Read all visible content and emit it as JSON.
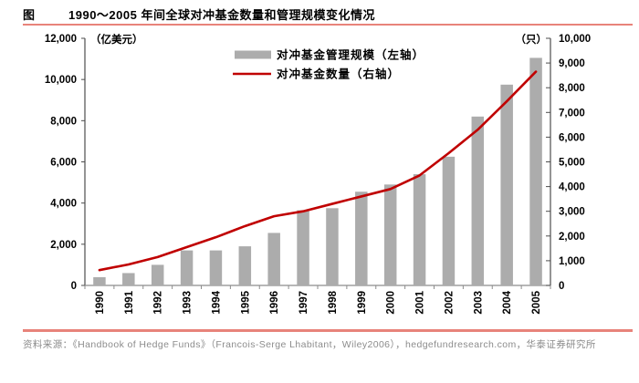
{
  "header": {
    "figure_label": "图",
    "title": "1990～2005 年间全球对冲基金数量和管理规模变化情况"
  },
  "chart_data": {
    "type": "bar",
    "subtype": "dual-axis-bar-line-combo",
    "title": "1990～2005 年间全球对冲基金数量和管理规模变化情况",
    "categories": [
      "1990",
      "1991",
      "1992",
      "1993",
      "1994",
      "1995",
      "1996",
      "1997",
      "1998",
      "1999",
      "2000",
      "2001",
      "2002",
      "2003",
      "2004",
      "2005"
    ],
    "series": [
      {
        "name": "对冲基金管理规模（左轴）",
        "type": "bar",
        "axis": "left",
        "color": "#ACACAC",
        "values": [
          400,
          600,
          1000,
          1700,
          1700,
          1900,
          2550,
          3650,
          3750,
          4550,
          4900,
          5400,
          6250,
          8200,
          9750,
          11050
        ]
      },
      {
        "name": "对冲基金数量（右轴）",
        "type": "line",
        "axis": "right",
        "color": "#C00000",
        "values": [
          620,
          850,
          1150,
          1550,
          1950,
          2400,
          2800,
          3000,
          3300,
          3600,
          3900,
          4450,
          5350,
          6300,
          7450,
          8650
        ]
      }
    ],
    "left_axis": {
      "unit": "（亿美元）",
      "min": 0,
      "max": 12000,
      "step": 2000
    },
    "right_axis": {
      "unit": "（只）",
      "min": 0,
      "max": 10000,
      "step": 1000
    },
    "legend_position": "top-center",
    "grid": false
  },
  "footer": {
    "source": "资料来源：《Handbook of Hedge Funds》（Francois-Serge Lhabitant，Wiley2006），hedgefundresearch.com，华泰证券研究所"
  },
  "colors": {
    "bar": "#ACACAC",
    "line": "#C00000",
    "rule": "#E8837A",
    "footer_text": "#8C8C8C",
    "axis": "#4D4D4D"
  }
}
